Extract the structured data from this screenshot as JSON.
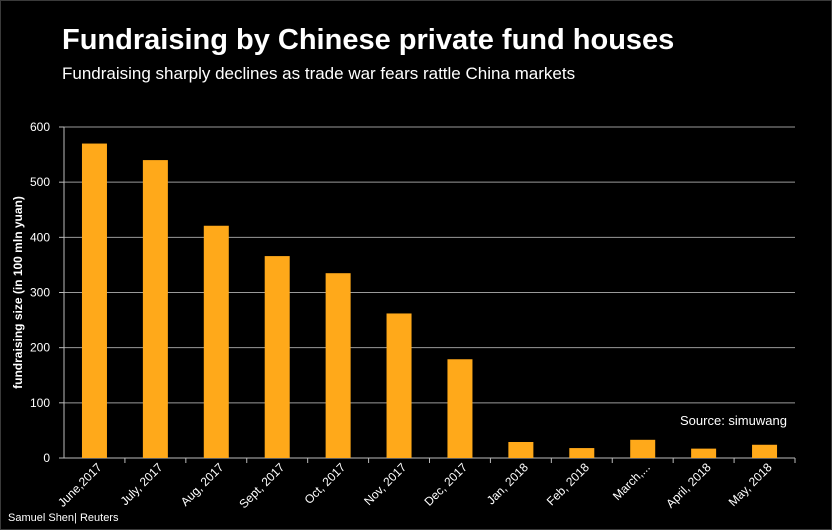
{
  "title": "Fundraising by Chinese private fund houses",
  "subtitle": "Fundraising sharply declines as trade war fears rattle China markets",
  "source": "Source:  simuwang",
  "credit": "Samuel Shen| Reuters",
  "colors": {
    "bar": "#FFA91A",
    "background": "#000000",
    "grid": "#9a9a9a"
  },
  "chart_data": {
    "type": "bar",
    "title": "Fundraising by Chinese private fund houses",
    "subtitle": "Fundraising sharply declines as trade war fears rattle China markets",
    "xlabel": "",
    "ylabel": "fundraising size (in 100 mln yuan)",
    "ylim": [
      0,
      600
    ],
    "yticks": [
      0,
      100,
      200,
      300,
      400,
      500,
      600
    ],
    "grid": true,
    "categories": [
      "June,2017",
      "July, 2017",
      "Aug, 2017",
      "Sept, 2017",
      "Oct, 2017",
      "Nov, 2017",
      "Dec, 2017",
      "Jan, 2018",
      "Feb, 2018",
      "March,...",
      "April, 2018",
      "May, 2018"
    ],
    "values": [
      570,
      540,
      421,
      366,
      335,
      262,
      179,
      29,
      18,
      33,
      17,
      24
    ]
  }
}
